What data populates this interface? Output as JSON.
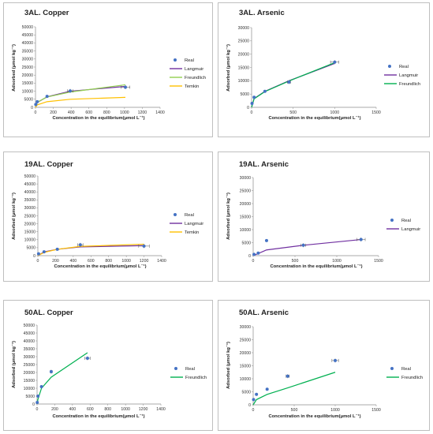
{
  "chart_data": [
    {
      "type": "line",
      "title": "3AL. Copper",
      "xlabel": "Concentration in the equilibrium(μmol L⁻¹)",
      "ylabel": "Adsorbed (μmol kg⁻¹)",
      "xlim": [
        0,
        1400
      ],
      "ylim": [
        0,
        50000
      ],
      "xticks": [
        0,
        200,
        400,
        600,
        800,
        1000,
        1200,
        1400
      ],
      "yticks": [
        0,
        5000,
        10000,
        15000,
        20000,
        25000,
        30000,
        35000,
        40000,
        45000,
        50000
      ],
      "legend": "right",
      "series": [
        {
          "name": "Real",
          "kind": "points",
          "color": "#4472C4",
          "x": [
            3,
            20,
            130,
            390,
            1010
          ],
          "y": [
            1800,
            3500,
            6800,
            10200,
            12500
          ],
          "xerr": [
            0,
            0,
            0,
            30,
            50
          ]
        },
        {
          "name": "Langmuir",
          "kind": "line",
          "color": "#7030A0",
          "x": [
            0,
            20,
            130,
            390,
            1010
          ],
          "y": [
            0,
            3000,
            6500,
            10000,
            13000
          ]
        },
        {
          "name": "Freundlich",
          "kind": "line",
          "color": "#92D050",
          "x": [
            0,
            20,
            130,
            390,
            1010
          ],
          "y": [
            0,
            3200,
            6400,
            9500,
            14000
          ]
        },
        {
          "name": "Temkin",
          "kind": "line",
          "color": "#FFC000",
          "x": [
            0,
            20,
            130,
            390,
            1010
          ],
          "y": [
            0,
            1500,
            3500,
            5000,
            6200
          ]
        }
      ]
    },
    {
      "type": "line",
      "title": "3AL. Arsenic",
      "xlabel": "Concentration in the equilibrium(μmol L⁻¹)",
      "ylabel": "Adsorbed (μmol kg⁻¹)",
      "xlim": [
        0,
        1500
      ],
      "ylim": [
        0,
        30000
      ],
      "xticks": [
        0,
        500,
        1000,
        1500
      ],
      "yticks": [
        0,
        5000,
        10000,
        15000,
        20000,
        25000,
        30000
      ],
      "legend": "right",
      "series": [
        {
          "name": "Real",
          "kind": "points",
          "color": "#4472C4",
          "x": [
            5,
            30,
            160,
            450,
            1000
          ],
          "y": [
            1500,
            3800,
            6000,
            9500,
            17000
          ],
          "xerr": [
            0,
            0,
            0,
            20,
            50
          ]
        },
        {
          "name": "Langmuir",
          "kind": "line",
          "color": "#7030A0",
          "x": [
            0,
            30,
            160,
            450,
            1000
          ],
          "y": [
            0,
            3300,
            6000,
            10000,
            16500
          ]
        },
        {
          "name": "Freundlich",
          "kind": "line",
          "color": "#00B050",
          "x": [
            0,
            30,
            160,
            450,
            1000
          ],
          "y": [
            0,
            3200,
            5900,
            9900,
            16800
          ]
        }
      ]
    },
    {
      "type": "line",
      "title": "19AL. Copper",
      "xlabel": "Concentration in the equilibrium(μmol L⁻¹)",
      "ylabel": "Adsorbed (μmol kg⁻¹)",
      "xlim": [
        0,
        1400
      ],
      "ylim": [
        0,
        50000
      ],
      "xticks": [
        0,
        200,
        400,
        600,
        800,
        1000,
        1200,
        1400
      ],
      "yticks": [
        0,
        5000,
        10000,
        15000,
        20000,
        25000,
        30000,
        35000,
        40000,
        45000,
        50000
      ],
      "legend": "right",
      "series": [
        {
          "name": "Real",
          "kind": "points",
          "color": "#4472C4",
          "x": [
            8,
            70,
            220,
            480,
            1200
          ],
          "y": [
            1200,
            2400,
            4000,
            6800,
            6000
          ],
          "xerr": [
            0,
            0,
            0,
            30,
            60
          ]
        },
        {
          "name": "Langmuir",
          "kind": "line",
          "color": "#7030A0",
          "x": [
            0,
            70,
            220,
            480,
            1200
          ],
          "y": [
            0,
            2400,
            4000,
            5500,
            6300
          ]
        },
        {
          "name": "Temkin",
          "kind": "line",
          "color": "#FFC000",
          "x": [
            0,
            70,
            220,
            480,
            1200
          ],
          "y": [
            0,
            2000,
            4000,
            5800,
            7200
          ]
        }
      ]
    },
    {
      "type": "line",
      "title": "19AL. Arsenic",
      "xlabel": "Concentration in the equilibrium(μmol L⁻¹)",
      "ylabel": "Adsorbed (μmol kg⁻¹)",
      "xlim": [
        0,
        1500
      ],
      "ylim": [
        0,
        30000
      ],
      "xticks": [
        0,
        500,
        1000,
        1500
      ],
      "yticks": [
        0,
        5000,
        10000,
        15000,
        20000,
        25000,
        30000
      ],
      "legend": "right",
      "series": [
        {
          "name": "Real",
          "kind": "points",
          "color": "#4472C4",
          "x": [
            10,
            60,
            160,
            600,
            1290
          ],
          "y": [
            500,
            1000,
            5800,
            4000,
            6200
          ],
          "xerr": [
            0,
            0,
            0,
            30,
            50
          ]
        },
        {
          "name": "Langmuir",
          "kind": "line",
          "color": "#7030A0",
          "x": [
            0,
            60,
            160,
            600,
            1290
          ],
          "y": [
            0,
            800,
            2200,
            4000,
            6200
          ]
        }
      ]
    },
    {
      "type": "line",
      "title": "50AL. Copper",
      "xlabel": "Concentration in the equilibrium(μmol L⁻¹)",
      "ylabel": "Adsorbed (μmol kg⁻¹)",
      "xlim": [
        0,
        1400
      ],
      "ylim": [
        0,
        50000
      ],
      "xticks": [
        0,
        200,
        400,
        600,
        800,
        1000,
        1200,
        1400
      ],
      "yticks": [
        0,
        5000,
        10000,
        15000,
        20000,
        25000,
        30000,
        35000,
        40000,
        45000,
        50000
      ],
      "legend": "right",
      "series": [
        {
          "name": "Real",
          "kind": "points",
          "color": "#4472C4",
          "x": [
            2,
            10,
            50,
            160,
            570
          ],
          "y": [
            1000,
            5000,
            11000,
            20500,
            29000
          ],
          "xerr": [
            0,
            0,
            0,
            10,
            30
          ]
        },
        {
          "name": "Freundlich",
          "kind": "line",
          "color": "#00B050",
          "x": [
            0,
            10,
            50,
            160,
            570
          ],
          "y": [
            0,
            3000,
            10000,
            17000,
            32500
          ]
        }
      ]
    },
    {
      "type": "line",
      "title": "50AL. Arsenic",
      "xlabel": "Concentration in the equilibrium(μmol L⁻¹)",
      "ylabel": "Adsorbed (μmol kg⁻¹)",
      "xlim": [
        0,
        1500
      ],
      "ylim": [
        0,
        30000
      ],
      "xticks": [
        0,
        500,
        1000,
        1500
      ],
      "yticks": [
        0,
        5000,
        10000,
        15000,
        20000,
        25000,
        30000
      ],
      "legend": "right",
      "series": [
        {
          "name": "Real",
          "kind": "points",
          "color": "#4472C4",
          "x": [
            5,
            40,
            170,
            420,
            1000
          ],
          "y": [
            2000,
            4000,
            6000,
            11000,
            17000
          ],
          "xerr": [
            0,
            0,
            0,
            20,
            40
          ]
        },
        {
          "name": "Freundlich",
          "kind": "line",
          "color": "#00B050",
          "x": [
            0,
            40,
            170,
            420,
            1000
          ],
          "y": [
            0,
            2000,
            4000,
            6500,
            12500
          ]
        }
      ]
    }
  ]
}
